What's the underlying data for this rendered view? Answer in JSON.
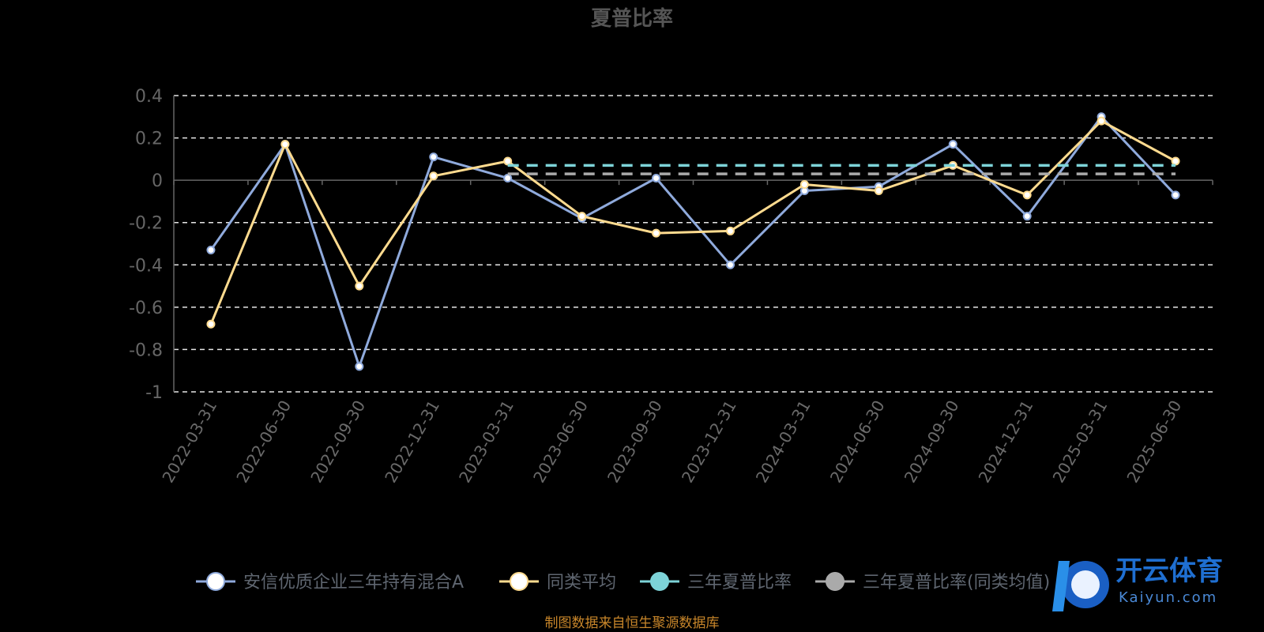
{
  "chart_data": {
    "type": "line",
    "title": "夏普比率",
    "categories": [
      "2022-03-31",
      "2022-06-30",
      "2022-09-30",
      "2022-12-31",
      "2023-03-31",
      "2023-06-30",
      "2023-09-30",
      "2023-12-31",
      "2024-03-31",
      "2024-06-30",
      "2024-09-30",
      "2024-12-31",
      "2025-03-31",
      "2025-06-30"
    ],
    "ylim": [
      -1,
      0.4
    ],
    "yticks": [
      "0.4",
      "0.2",
      "0",
      "-0.2",
      "-0.4",
      "-0.6",
      "-0.8",
      "-1"
    ],
    "grid": true,
    "legend_position": "bottom",
    "series": [
      {
        "name": "安信优质企业三年持有混合A",
        "color": "#8faadc",
        "values": [
          -0.33,
          0.17,
          -0.88,
          0.11,
          0.01,
          -0.18,
          0.01,
          -0.4,
          -0.05,
          -0.03,
          0.17,
          -0.17,
          0.3,
          -0.07
        ]
      },
      {
        "name": "同类平均",
        "color": "#ffdb8f",
        "values": [
          -0.68,
          0.17,
          -0.5,
          0.02,
          0.09,
          -0.17,
          -0.25,
          -0.24,
          -0.02,
          -0.05,
          0.07,
          -0.07,
          0.28,
          0.09
        ]
      },
      {
        "name": "三年夏普比率",
        "color": "#7dd3d8",
        "style": "dashed",
        "values": [
          null,
          null,
          null,
          null,
          0.07,
          0.07,
          0.07,
          0.07,
          0.07,
          0.07,
          0.07,
          0.07,
          0.07,
          0.07
        ]
      },
      {
        "name": "三年夏普比率(同类均值)",
        "color": "#aaaaaa",
        "style": "dashed",
        "values": [
          null,
          null,
          null,
          null,
          0.03,
          0.03,
          0.03,
          0.03,
          0.03,
          0.03,
          0.03,
          0.03,
          0.03,
          0.03
        ]
      }
    ],
    "legend_display": [
      "安信优质企业三年持有混合A",
      "同类平均",
      "三年夏普比率",
      "三年夏普比率(同类均值)"
    ]
  },
  "source_note": "制图数据来自恒生聚源数据库",
  "watermark": {
    "text": "开云体育",
    "sub": "Kaiyun.com"
  }
}
